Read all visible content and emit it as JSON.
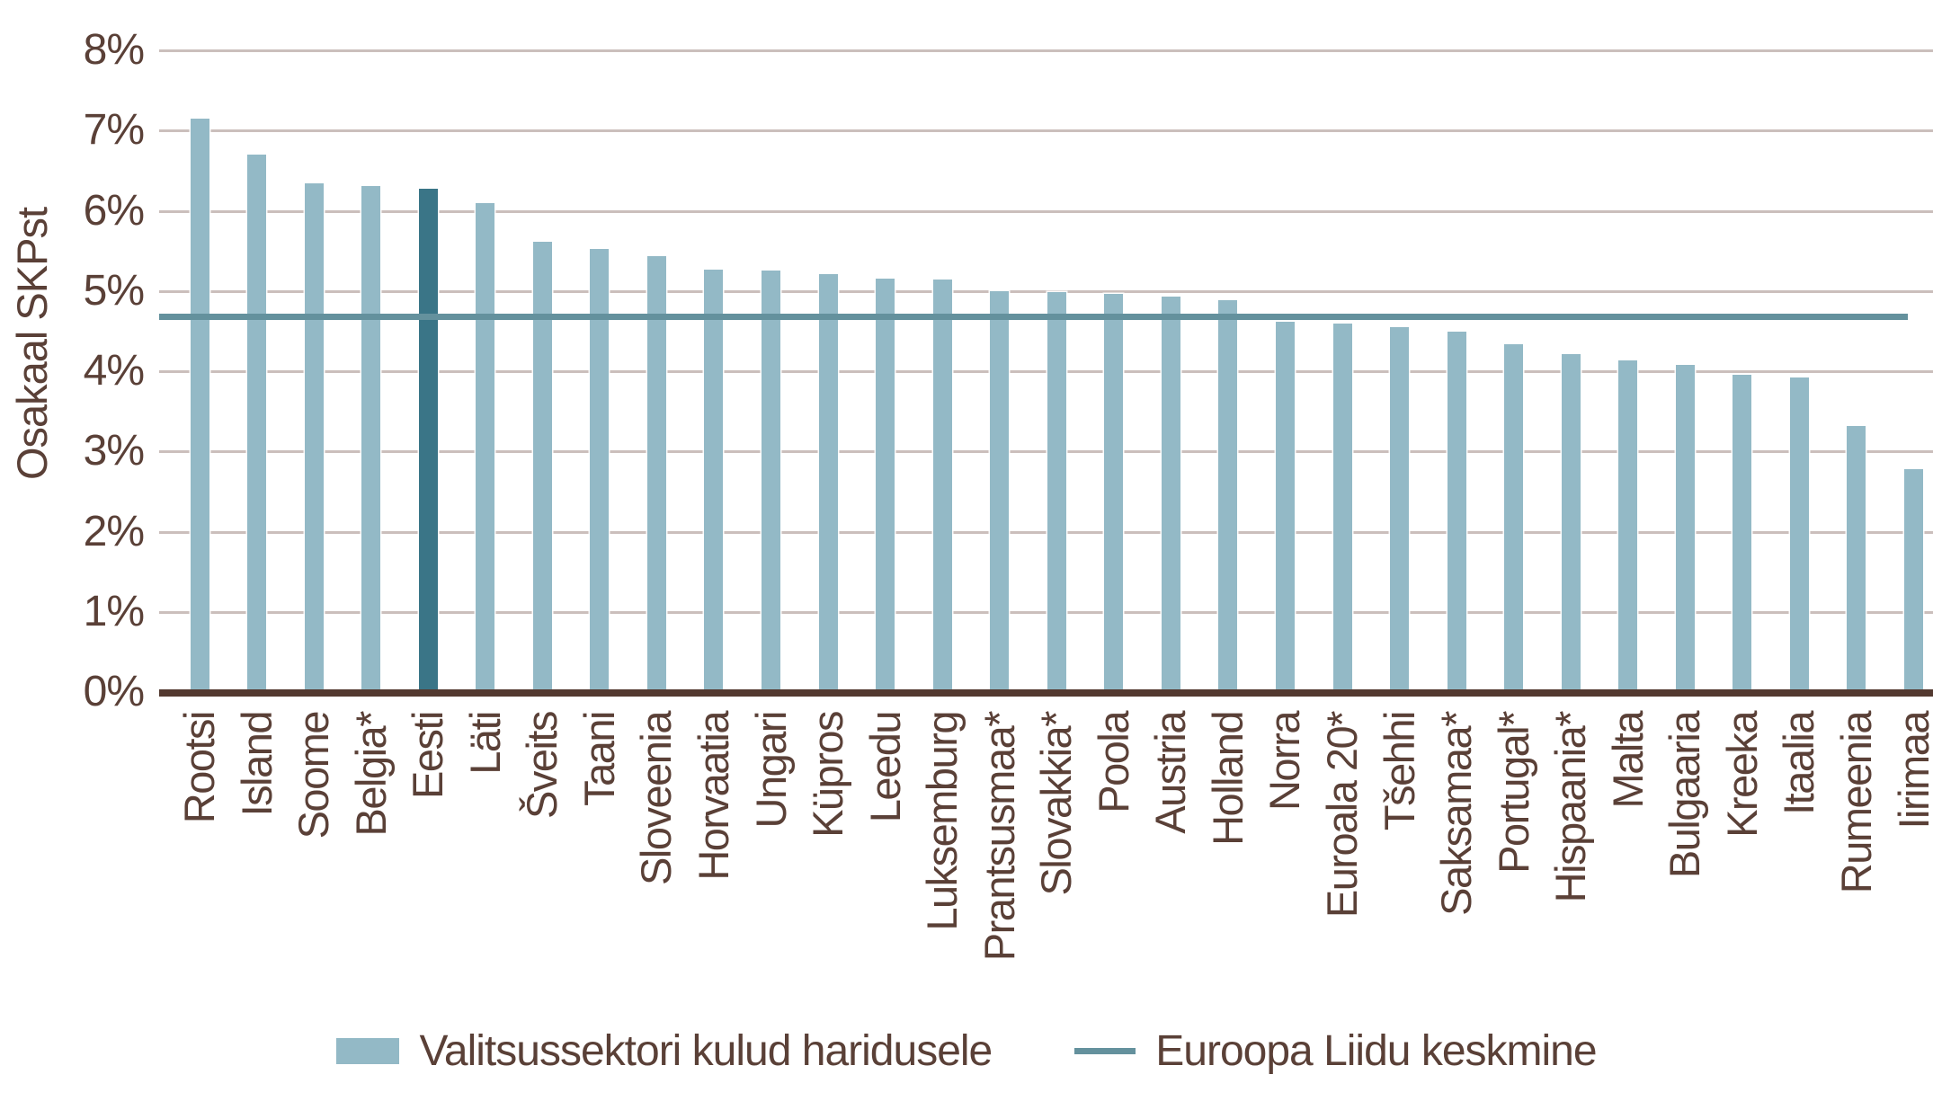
{
  "chart": {
    "legend": {
      "bars_label": "Valitsussektori kulud haridusele",
      "line_label": "Euroopa Liidu keskmine"
    },
    "colors": {
      "bar": "#93b9c6",
      "bar_highlight": "#3a7587",
      "avg_line": "#64919d",
      "grid": "#cbbfbc",
      "axis_baseline": "#533930",
      "text": "#5a4037",
      "bar_edge": "#ffffff"
    }
  },
  "chart_data": {
    "type": "bar",
    "title": "",
    "ylabel": "Osakaal SKPst",
    "xlabel": "",
    "ylim": [
      0,
      8
    ],
    "yticks": [
      "0%",
      "1%",
      "2%",
      "3%",
      "4%",
      "5%",
      "6%",
      "7%",
      "8%"
    ],
    "grid": true,
    "legend_position": "bottom",
    "series_name": "Valitsussektori kulud haridusele",
    "categories": [
      "Rootsi",
      "Island",
      "Soome",
      "Belgia*",
      "Eesti",
      "Läti",
      "Šveits",
      "Taani",
      "Sloveenia",
      "Horvaatia",
      "Ungari",
      "Küpros",
      "Leedu",
      "Luksemburg",
      "Prantsusmaa*",
      "Slovakkia*",
      "Poola",
      "Austria",
      "Holland",
      "Norra",
      "Euroala 20*",
      "Tšehhi",
      "Saksamaa*",
      "Portugal*",
      "Hispaania*",
      "Malta",
      "Bulgaaria",
      "Kreeka",
      "Itaalia",
      "Rumeenia",
      "Iirimaa"
    ],
    "values": [
      7.15,
      6.7,
      6.34,
      6.31,
      6.28,
      6.09,
      5.61,
      5.52,
      5.43,
      5.27,
      5.26,
      5.21,
      5.15,
      5.14,
      5.0,
      4.99,
      4.96,
      4.93,
      4.89,
      4.62,
      4.59,
      4.55,
      4.49,
      4.34,
      4.21,
      4.14,
      4.08,
      3.95,
      3.92,
      3.32,
      2.78
    ],
    "value_unit": "% of GDP",
    "highlight_category": "Eesti",
    "reference_line": {
      "name": "Euroopa Liidu keskmine",
      "value": 4.68
    }
  }
}
